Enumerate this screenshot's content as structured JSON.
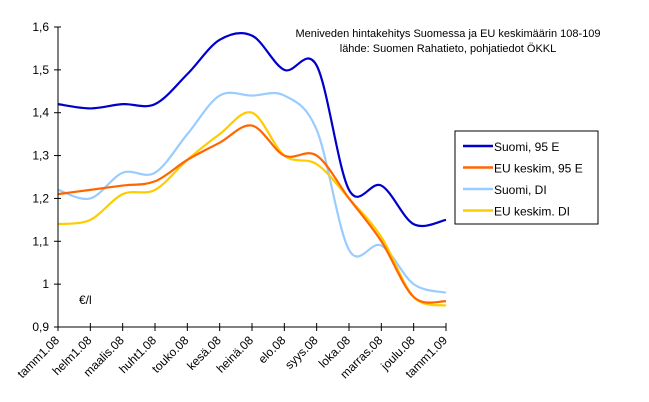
{
  "chart_data": {
    "type": "line",
    "title": "Meniveden hintakehitys Suomessa ja EU keskimäärin 108-109",
    "subtitle": "lähde: Suomen Rahatieto, pohjatiedot ÖKKL",
    "xlabel": "",
    "ylabel": "€/l",
    "ylim": [
      0.9,
      1.6
    ],
    "yticks": [
      "0,9",
      "1",
      "1,1",
      "1,2",
      "1,3",
      "1,4",
      "1,5",
      "1,6"
    ],
    "ytick_values": [
      0.9,
      1.0,
      1.1,
      1.2,
      1.3,
      1.4,
      1.5,
      1.6
    ],
    "grid": false,
    "legend_position": "right",
    "categories": [
      "tamm1.08",
      "helm1.08",
      "maalis.08",
      "huht1.08",
      "touko.08",
      "kesä.08",
      "heinä.08",
      "elo.08",
      "syys.08",
      "loka.08",
      "marras.08",
      "joulu.08",
      "tamm1.09"
    ],
    "series": [
      {
        "name": "Suomi, 95 E",
        "color": "#0000CC",
        "values": [
          1.42,
          1.41,
          1.42,
          1.42,
          1.49,
          1.57,
          1.58,
          1.5,
          1.51,
          1.22,
          1.23,
          1.14,
          1.15
        ]
      },
      {
        "name": "EU keskim, 95 E",
        "color": "#FF6600",
        "values": [
          1.21,
          1.22,
          1.23,
          1.24,
          1.29,
          1.33,
          1.37,
          1.3,
          1.3,
          1.2,
          1.1,
          0.97,
          0.96
        ]
      },
      {
        "name": "Suomi, DI",
        "color": "#99CCFF",
        "values": [
          1.22,
          1.2,
          1.26,
          1.26,
          1.35,
          1.44,
          1.44,
          1.44,
          1.36,
          1.08,
          1.09,
          1.0,
          0.98
        ]
      },
      {
        "name": "EU keskim. DI",
        "color": "#FFCC00",
        "values": [
          1.14,
          1.15,
          1.21,
          1.22,
          1.29,
          1.35,
          1.4,
          1.3,
          1.28,
          1.2,
          1.11,
          0.97,
          0.95
        ]
      }
    ]
  }
}
